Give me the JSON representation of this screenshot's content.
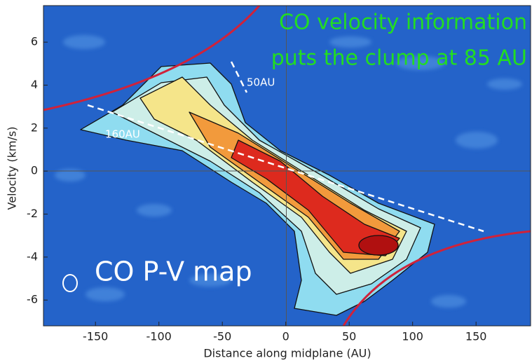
{
  "chart_data": {
    "type": "image",
    "x_label": "Distance along midplane (AU)",
    "y_label": "Velocity (km/s)",
    "xlim": [
      -191,
      193
    ],
    "ylim": [
      -7.2,
      7.7
    ],
    "xticks": [
      -150,
      -100,
      -50,
      0,
      50,
      100,
      150
    ],
    "yticks": [
      -6,
      -4,
      -2,
      0,
      2,
      4,
      6
    ],
    "annotations": [
      "CO velocity information",
      "puts the clump at 85 AU",
      "CO P-V map",
      "50AU",
      "160AU"
    ]
  }
}
